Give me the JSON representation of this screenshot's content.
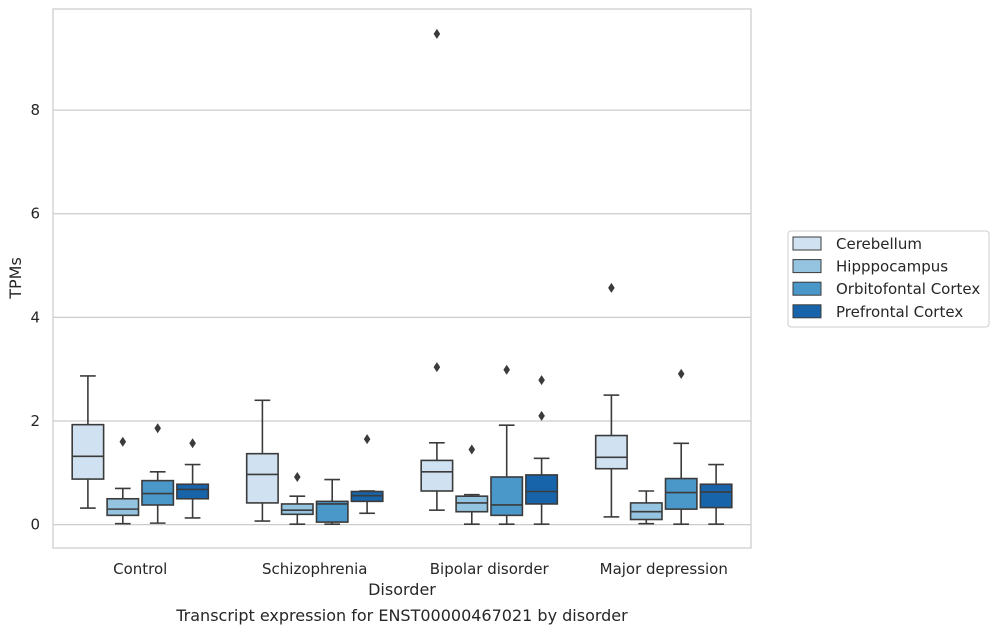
{
  "chart_data": {
    "type": "box",
    "title": "",
    "caption": "Transcript expression for ENST00000467021 by disorder",
    "xlabel": "Disorder",
    "ylabel": "TPMs",
    "ylim": [
      -0.45,
      9.95
    ],
    "yticks": [
      0,
      2,
      4,
      6,
      8
    ],
    "grid": "horizontal",
    "legend_position": "right",
    "categories": [
      "Control",
      "Schizophrenia",
      "Bipolar disorder",
      "Major depression"
    ],
    "series": [
      {
        "name": "Cerebellum",
        "color": "#d0e1f2",
        "boxes": [
          {
            "whisker_low": 0.32,
            "q1": 0.88,
            "median": 1.32,
            "q3": 1.93,
            "whisker_high": 2.87,
            "outliers": []
          },
          {
            "whisker_low": 0.07,
            "q1": 0.42,
            "median": 0.97,
            "q3": 1.37,
            "whisker_high": 2.4,
            "outliers": []
          },
          {
            "whisker_low": 0.28,
            "q1": 0.65,
            "median": 1.02,
            "q3": 1.24,
            "whisker_high": 1.58,
            "outliers": [
              3.04,
              9.47
            ]
          },
          {
            "whisker_low": 0.15,
            "q1": 1.08,
            "median": 1.3,
            "q3": 1.72,
            "whisker_high": 2.5,
            "outliers": [
              4.57
            ]
          }
        ]
      },
      {
        "name": "Hipppocampus",
        "color": "#94c4df",
        "boxes": [
          {
            "whisker_low": 0.02,
            "q1": 0.18,
            "median": 0.3,
            "q3": 0.5,
            "whisker_high": 0.7,
            "outliers": [
              1.6
            ]
          },
          {
            "whisker_low": 0.01,
            "q1": 0.2,
            "median": 0.28,
            "q3": 0.4,
            "whisker_high": 0.55,
            "outliers": [
              0.92
            ]
          },
          {
            "whisker_low": 0.01,
            "q1": 0.25,
            "median": 0.42,
            "q3": 0.55,
            "whisker_high": 0.58,
            "outliers": [
              1.45
            ]
          },
          {
            "whisker_low": 0.02,
            "q1": 0.1,
            "median": 0.25,
            "q3": 0.42,
            "whisker_high": 0.65,
            "outliers": []
          }
        ]
      },
      {
        "name": "Orbitofontal Cortex",
        "color": "#4a98c9",
        "boxes": [
          {
            "whisker_low": 0.03,
            "q1": 0.38,
            "median": 0.6,
            "q3": 0.85,
            "whisker_high": 1.02,
            "outliers": [
              1.86
            ]
          },
          {
            "whisker_low": 0.01,
            "q1": 0.05,
            "median": 0.4,
            "q3": 0.45,
            "whisker_high": 0.87,
            "outliers": []
          },
          {
            "whisker_low": 0.01,
            "q1": 0.18,
            "median": 0.38,
            "q3": 0.92,
            "whisker_high": 1.92,
            "outliers": [
              2.99
            ]
          },
          {
            "whisker_low": 0.01,
            "q1": 0.3,
            "median": 0.62,
            "q3": 0.89,
            "whisker_high": 1.57,
            "outliers": [
              2.91
            ]
          }
        ]
      },
      {
        "name": "Prefrontal Cortex",
        "color": "#1764ab",
        "boxes": [
          {
            "whisker_low": 0.13,
            "q1": 0.5,
            "median": 0.68,
            "q3": 0.78,
            "whisker_high": 1.16,
            "outliers": [
              1.57
            ]
          },
          {
            "whisker_low": 0.22,
            "q1": 0.45,
            "median": 0.56,
            "q3": 0.64,
            "whisker_high": 0.65,
            "outliers": [
              1.65
            ]
          },
          {
            "whisker_low": 0.01,
            "q1": 0.4,
            "median": 0.64,
            "q3": 0.96,
            "whisker_high": 1.28,
            "outliers": [
              2.1,
              2.79
            ]
          },
          {
            "whisker_low": 0.01,
            "q1": 0.33,
            "median": 0.63,
            "q3": 0.78,
            "whisker_high": 1.16,
            "outliers": []
          }
        ]
      }
    ]
  }
}
